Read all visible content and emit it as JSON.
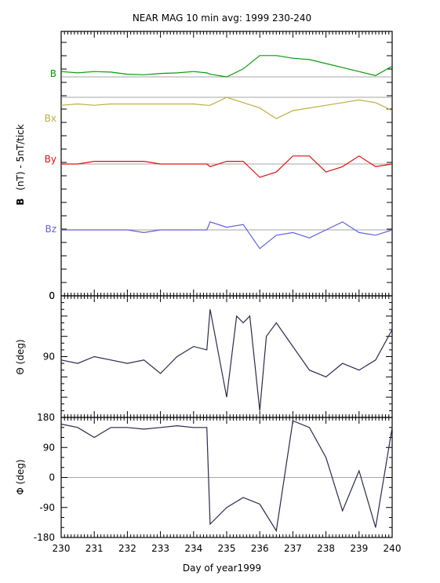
{
  "chart_data": {
    "type": "line",
    "title": "NEAR MAG 10 min avg: 1999 230-240",
    "xlabel": "Day of year1999",
    "xlim": [
      230,
      240
    ],
    "xticks": [
      230,
      231,
      232,
      233,
      234,
      235,
      236,
      237,
      238,
      239,
      240
    ],
    "grid": false,
    "panels": [
      {
        "id": "field",
        "ylabel_bold": "B",
        "ylabel_rest": "(nT) - 5nT/tick",
        "yticks": [
          {
            "value": 0,
            "label": "0"
          }
        ],
        "series": [
          {
            "name": "B",
            "color": "#0a9a0a",
            "offset": 0,
            "x": [
              230,
              230.5,
              231,
              231.5,
              232,
              232.5,
              233,
              233.5,
              234,
              234.4,
              234.5,
              235,
              235.5,
              236,
              236.5,
              237,
              237.5,
              238,
              238.5,
              239,
              239.5,
              240
            ],
            "y": [
              2,
              1.5,
              2,
              1.8,
              1,
              0.8,
              1.3,
              1.5,
              2,
              1.5,
              1,
              0,
              3,
              8,
              8,
              7,
              6.5,
              5,
              3.5,
              2,
              0.5,
              4
            ]
          },
          {
            "name": "Bx",
            "color": "#b8b040",
            "offset": 0,
            "x": [
              230,
              230.5,
              231,
              231.5,
              232,
              232.5,
              233,
              233.5,
              234,
              234.4,
              234.5,
              235,
              235.5,
              236,
              236.5,
              237,
              237.5,
              238,
              238.5,
              239,
              239.5,
              240
            ],
            "y": [
              -3,
              -2.5,
              -3,
              -2.5,
              -2.5,
              -2.5,
              -2.5,
              -2.5,
              -2.5,
              -3,
              -3,
              0,
              -2,
              -4,
              -8,
              -5,
              -4,
              -3,
              -2,
              -1,
              -2,
              -5
            ]
          },
          {
            "name": "By",
            "color": "#dd1010",
            "offset": 0,
            "x": [
              230,
              230.5,
              231,
              231.5,
              232,
              232.5,
              233,
              233.5,
              234,
              234.4,
              234.5,
              235,
              235.5,
              236,
              236.5,
              237,
              237.5,
              238,
              238.5,
              239,
              239.5,
              240
            ],
            "y": [
              0,
              0,
              1,
              1,
              1,
              1,
              0,
              0,
              0,
              0,
              -1,
              1,
              1,
              -5,
              -3,
              3,
              3,
              -3,
              -1,
              3,
              -1,
              0
            ]
          },
          {
            "name": "Bz",
            "color": "#6060e0",
            "offset": 0,
            "x": [
              230,
              230.5,
              231,
              231.5,
              232,
              232.5,
              233,
              233.5,
              234,
              234.4,
              234.5,
              235,
              235.5,
              236,
              236.5,
              237,
              237.5,
              238,
              238.5,
              239,
              239.5,
              240
            ],
            "y": [
              0,
              0,
              0,
              0,
              0,
              -1,
              0,
              0,
              0,
              0,
              3,
              1,
              2,
              -7,
              -2,
              -1,
              -3,
              0,
              3,
              -1,
              -2,
              0
            ]
          }
        ]
      },
      {
        "id": "theta",
        "ylabel": "Θ (deg)",
        "ylim": [
          0,
          180
        ],
        "inverted": true,
        "yticks": [
          {
            "value": 0,
            "label": "0"
          },
          {
            "value": 90,
            "label": "90"
          }
        ],
        "series": [
          {
            "name": "",
            "color": "#2a2a4a",
            "x": [
              230,
              230.5,
              231,
              231.5,
              232,
              232.5,
              233,
              233.5,
              234,
              234.4,
              234.5,
              235,
              235.3,
              235.5,
              235.7,
              236,
              236.2,
              236.5,
              237,
              237.5,
              238,
              238.5,
              239,
              239.5,
              240
            ],
            "y": [
              95,
              100,
              90,
              95,
              100,
              95,
              115,
              90,
              75,
              80,
              20,
              150,
              30,
              40,
              30,
              170,
              60,
              40,
              75,
              110,
              120,
              100,
              110,
              95,
              50
            ]
          }
        ]
      },
      {
        "id": "phi",
        "ylabel": "Φ (deg)",
        "ylim": [
          -180,
          180
        ],
        "yticks": [
          {
            "value": 180,
            "label": "180"
          },
          {
            "value": 90,
            "label": "90"
          },
          {
            "value": 0,
            "label": "0"
          },
          {
            "value": -90,
            "label": "-90"
          },
          {
            "value": -180,
            "label": "-180"
          }
        ],
        "series": [
          {
            "name": "",
            "color": "#2a2a4a",
            "x": [
              230,
              230.5,
              231,
              231.5,
              232,
              232.5,
              233,
              233.5,
              234,
              234.4,
              234.5,
              235,
              235.5,
              236,
              236.5,
              237,
              237.5,
              238,
              238.5,
              239,
              239.5,
              240
            ],
            "y": [
              160,
              150,
              120,
              150,
              150,
              145,
              150,
              155,
              150,
              150,
              -140,
              -90,
              -60,
              -80,
              -160,
              170,
              150,
              60,
              -100,
              20,
              -150,
              150
            ]
          }
        ]
      }
    ]
  }
}
